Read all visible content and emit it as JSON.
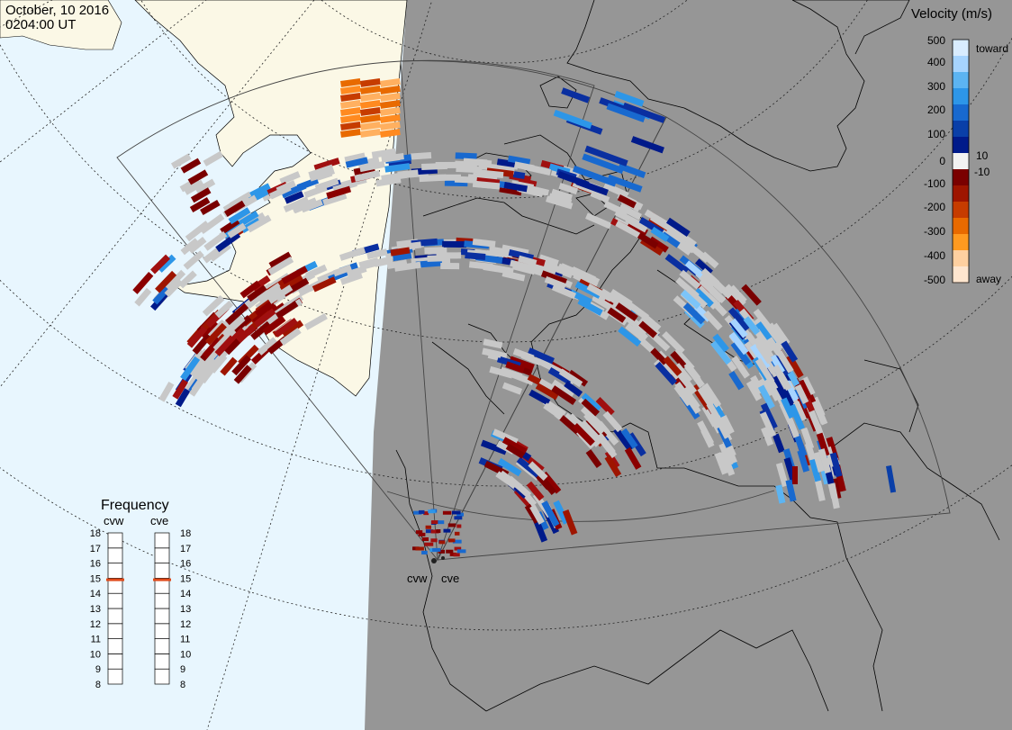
{
  "header": {
    "date": "October, 10 2016",
    "time": "0204:00 UT"
  },
  "colors": {
    "day_ocean": "#e8f6fe",
    "day_land": "#fbf8e6",
    "night": "#969696",
    "ground_scatter": "#c8c8c8"
  },
  "velocity_scale": {
    "title": "Velocity (m/s)",
    "toward_label": "toward",
    "away_label": "away",
    "ticks": [
      "500",
      "400",
      "300",
      "200",
      "100",
      "10",
      "0",
      "-10",
      "-100",
      "-200",
      "-300",
      "-400",
      "-500"
    ],
    "colors": [
      "#d8ecff",
      "#a6d4ff",
      "#5cb4f2",
      "#2d96e8",
      "#1869cf",
      "#0a3fa8",
      "#001a8a",
      "#f2f2f2",
      "#7a0000",
      "#9e1500",
      "#c63c00",
      "#e86a00",
      "#ff9a20",
      "#ffd0a0",
      "#ffe6cf"
    ]
  },
  "frequency_panel": {
    "title": "Frequency",
    "radars": [
      {
        "name": "cvw",
        "value_mhz": 14.9
      },
      {
        "name": "cve",
        "value_mhz": 14.9
      }
    ],
    "ticks": [
      "18",
      "17",
      "16",
      "15",
      "14",
      "13",
      "12",
      "11",
      "10",
      "9",
      "8"
    ],
    "marker_color": "#e04a1a"
  },
  "radars": [
    {
      "code": "cvw"
    },
    {
      "code": "cve"
    }
  ]
}
